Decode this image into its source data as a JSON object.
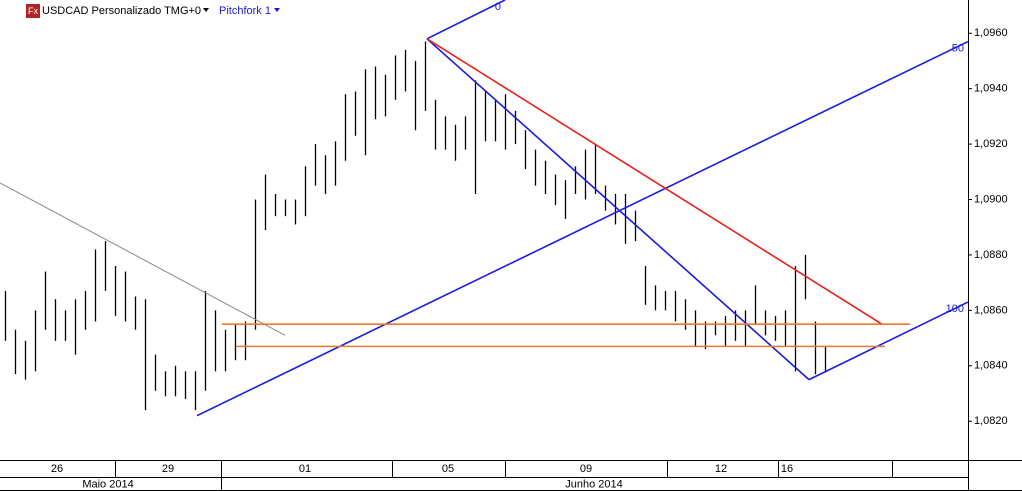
{
  "chart_data": {
    "type": "range",
    "symbol": "USDCAD Personalizado TMG+0",
    "icon": "Fx",
    "study": "Pitchfork 1",
    "color": "#000000",
    "xlim": [
      0,
      96.8
    ],
    "ylim": [
      1.0806,
      1.0972
    ],
    "yticks": [
      {
        "value": 1.082,
        "label": "1,0820"
      },
      {
        "value": 1.084,
        "label": "1,0840"
      },
      {
        "value": 1.086,
        "label": "1,0860"
      },
      {
        "value": 1.088,
        "label": "1,0880"
      },
      {
        "value": 1.09,
        "label": "1,0900"
      },
      {
        "value": 1.092,
        "label": "1,0920"
      },
      {
        "value": 1.094,
        "label": "1,0940"
      },
      {
        "value": 1.096,
        "label": "1,0960"
      }
    ],
    "xticks": [
      {
        "value": 5.7,
        "label": "26"
      },
      {
        "value": 16.8,
        "label": "29"
      },
      {
        "value": 30.5,
        "label": "01"
      },
      {
        "value": 44.8,
        "label": "05"
      },
      {
        "value": 58.6,
        "label": "09"
      },
      {
        "value": 72.1,
        "label": "12"
      },
      {
        "value": 78.7,
        "label": "16"
      }
    ],
    "months": [
      {
        "value": 10.8,
        "label": "Maio 2014"
      },
      {
        "value": 59.4,
        "label": "Junho 2014"
      }
    ],
    "x": [
      0.5,
      1.5,
      2.5,
      3.5,
      4.5,
      5.5,
      6.5,
      7.5,
      8.5,
      9.5,
      10.5,
      11.5,
      12.5,
      13.5,
      14.5,
      15.5,
      16.5,
      17.5,
      18.5,
      19.5,
      20.5,
      21.5,
      22.5,
      23.5,
      24.5,
      25.5,
      26.5,
      27.5,
      28.5,
      29.5,
      30.5,
      31.5,
      32.5,
      33.5,
      34.5,
      35.5,
      36.5,
      37.5,
      38.5,
      39.5,
      40.5,
      41.5,
      42.5,
      43.5,
      44.5,
      45.5,
      46.5,
      47.5,
      48.5,
      49.5,
      50.5,
      51.5,
      52.5,
      53.5,
      54.5,
      55.5,
      56.5,
      57.5,
      58.5,
      59.5,
      60.5,
      61.5,
      62.5,
      63.5,
      64.5,
      65.5,
      66.5,
      67.5,
      68.5,
      69.5,
      70.5,
      71.5,
      72.5,
      73.5,
      74.5,
      75.5,
      76.5,
      77.5,
      78.5,
      79.5,
      80.5,
      81.5,
      82.5
    ],
    "high": [
      1.0867,
      1.0853,
      1.0849,
      1.086,
      1.0874,
      1.0864,
      1.086,
      1.0864,
      1.0867,
      1.0882,
      1.0885,
      1.0876,
      1.0874,
      1.0865,
      1.0864,
      1.0844,
      1.0838,
      1.084,
      1.0838,
      1.0838,
      1.0867,
      1.086,
      1.0853,
      1.0855,
      1.0856,
      1.09,
      1.0909,
      1.0902,
      1.09,
      1.09,
      1.0912,
      1.092,
      1.0916,
      1.0921,
      1.0938,
      1.0939,
      1.0947,
      1.0948,
      1.0945,
      1.0952,
      1.0954,
      1.095,
      1.0957,
      1.0936,
      1.093,
      1.0927,
      1.093,
      1.0943,
      1.0939,
      1.0936,
      1.0938,
      1.0932,
      1.0925,
      1.0918,
      1.0914,
      1.0909,
      1.0907,
      1.0912,
      1.0918,
      1.092,
      1.0905,
      1.0902,
      1.0902,
      1.0896,
      1.0876,
      1.0869,
      1.0867,
      1.0867,
      1.0864,
      1.086,
      1.0856,
      1.0856,
      1.0858,
      1.086,
      1.086,
      1.0869,
      1.086,
      1.0858,
      1.086,
      1.0876,
      1.088,
      1.0856,
      1.0847
    ],
    "low": [
      1.0849,
      1.0837,
      1.0835,
      1.0838,
      1.0853,
      1.0849,
      1.0849,
      1.0844,
      1.0853,
      1.0856,
      1.0867,
      1.0858,
      1.0856,
      1.0853,
      1.0824,
      1.0831,
      1.0829,
      1.0829,
      1.0828,
      1.0824,
      1.0831,
      1.0838,
      1.0838,
      1.0842,
      1.0842,
      1.0853,
      1.0889,
      1.0894,
      1.0894,
      1.0891,
      1.0894,
      1.0905,
      1.0902,
      1.0905,
      1.0914,
      1.0923,
      1.0916,
      1.0929,
      1.093,
      1.0936,
      1.0939,
      1.0925,
      1.0932,
      1.0918,
      1.0918,
      1.0914,
      1.0918,
      1.0902,
      1.0921,
      1.0921,
      1.0918,
      1.092,
      1.0911,
      1.0905,
      1.0902,
      1.0898,
      1.0893,
      1.0902,
      1.09,
      1.0902,
      1.0896,
      1.0891,
      1.0884,
      1.0885,
      1.0862,
      1.086,
      1.086,
      1.0856,
      1.0853,
      1.0847,
      1.0846,
      1.0851,
      1.0847,
      1.0849,
      1.0847,
      1.0855,
      1.0851,
      1.0849,
      1.0847,
      1.0838,
      1.0864,
      1.0837,
      1.0838
    ],
    "lines": [
      {
        "color": "#888888",
        "x": [
          0,
          28.5
        ],
        "y": [
          1.0906,
          1.0851
        ]
      },
      {
        "color": "#1a1adc",
        "x": [
          19.7,
          96.8
        ],
        "y": [
          1.0822,
          1.0957
        ],
        "label": "50"
      },
      {
        "color": "#1a1adc",
        "x": [
          42.7,
          50.5
        ],
        "y": [
          1.0958,
          1.0972
        ],
        "label": "0"
      },
      {
        "color": "#1a1adc",
        "x": [
          42.7,
          80.9
        ],
        "y": [
          1.0958,
          1.0835
        ]
      },
      {
        "color": "#1a1adc",
        "x": [
          80.9,
          96.8
        ],
        "y": [
          1.0835,
          1.0863
        ],
        "label": "100"
      },
      {
        "color": "#e8201c",
        "x": [
          42.7,
          88.2
        ],
        "y": [
          1.0958,
          1.0855
        ]
      },
      {
        "color": "#f07830",
        "x": [
          22.2,
          91.0
        ],
        "y": [
          1.0855,
          1.0855
        ]
      },
      {
        "color": "#f07830",
        "x": [
          23.6,
          88.5
        ],
        "y": [
          1.0847,
          1.0847
        ]
      }
    ]
  }
}
